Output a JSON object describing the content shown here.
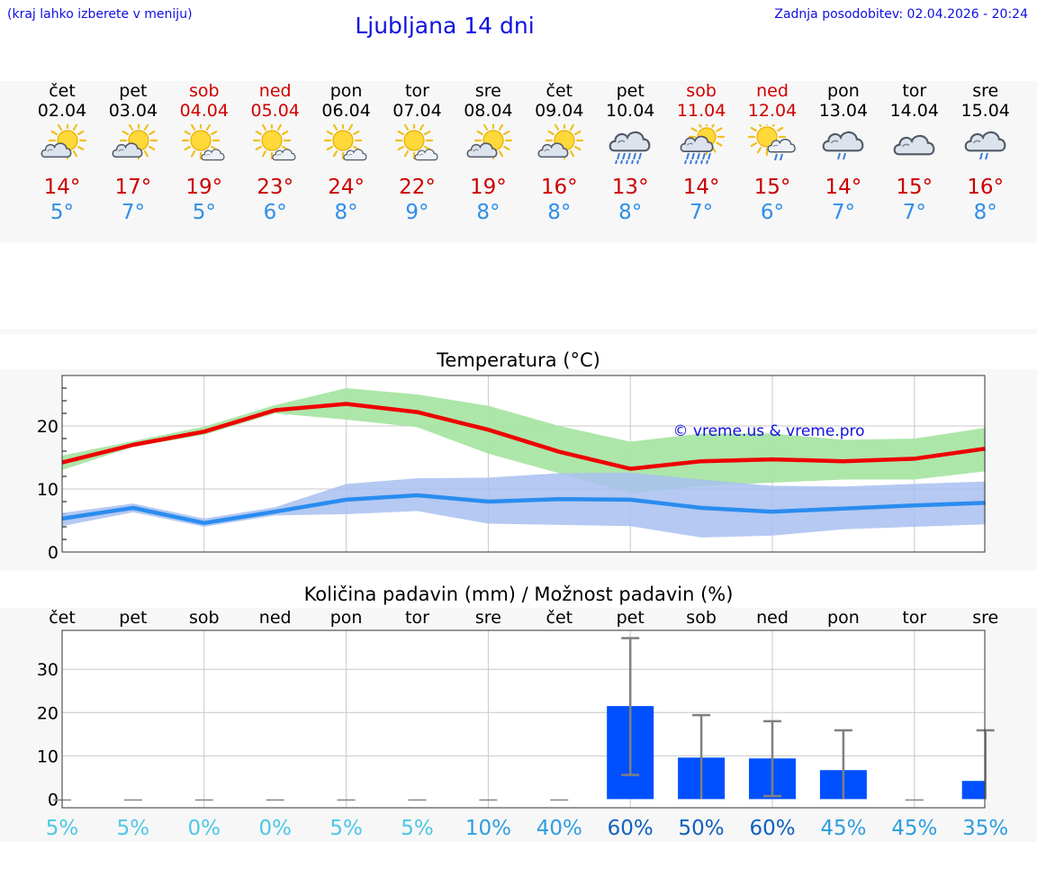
{
  "header": {
    "hint": "(kraj lahko izberete v meniju)",
    "title": "Ljubljana 14 dni",
    "update": "Zadnja posodobitev: 02.04.2026 - 20:24"
  },
  "days": [
    {
      "name": "čet",
      "date": "02.04",
      "weekend": false,
      "icon": "sun-cloud",
      "tmax": "14°",
      "tmin": "5°"
    },
    {
      "name": "pet",
      "date": "03.04",
      "weekend": false,
      "icon": "sun-cloud",
      "tmax": "17°",
      "tmin": "7°"
    },
    {
      "name": "sob",
      "date": "04.04",
      "weekend": true,
      "icon": "sun-small-cloud",
      "tmax": "19°",
      "tmin": "5°"
    },
    {
      "name": "ned",
      "date": "05.04",
      "weekend": true,
      "icon": "sun-small-cloud",
      "tmax": "23°",
      "tmin": "6°"
    },
    {
      "name": "pon",
      "date": "06.04",
      "weekend": false,
      "icon": "sun-small-cloud",
      "tmax": "24°",
      "tmin": "8°"
    },
    {
      "name": "tor",
      "date": "07.04",
      "weekend": false,
      "icon": "sun-small-cloud",
      "tmax": "22°",
      "tmin": "9°"
    },
    {
      "name": "sre",
      "date": "08.04",
      "weekend": false,
      "icon": "sun-cloud",
      "tmax": "19°",
      "tmin": "8°"
    },
    {
      "name": "čet",
      "date": "09.04",
      "weekend": false,
      "icon": "sun-cloud",
      "tmax": "16°",
      "tmin": "8°"
    },
    {
      "name": "pet",
      "date": "10.04",
      "weekend": false,
      "icon": "cloud-rain-heavy",
      "tmax": "13°",
      "tmin": "8°"
    },
    {
      "name": "sob",
      "date": "11.04",
      "weekend": true,
      "icon": "sun-cloud-rain-heavy",
      "tmax": "14°",
      "tmin": "7°"
    },
    {
      "name": "ned",
      "date": "12.04",
      "weekend": true,
      "icon": "sun-cloud-rain",
      "tmax": "15°",
      "tmin": "6°"
    },
    {
      "name": "pon",
      "date": "13.04",
      "weekend": false,
      "icon": "cloud-rain",
      "tmax": "14°",
      "tmin": "7°"
    },
    {
      "name": "tor",
      "date": "14.04",
      "weekend": false,
      "icon": "cloud",
      "tmax": "15°",
      "tmin": "7°"
    },
    {
      "name": "sre",
      "date": "15.04",
      "weekend": false,
      "icon": "cloud-rain",
      "tmax": "16°",
      "tmin": "8°"
    }
  ],
  "colors": {
    "accent_blue": "#1010e0",
    "max_line": "#ee0000",
    "min_line": "#2a8cf0",
    "max_band": "#a9e5a4",
    "min_band": "#a8c0f0",
    "precip_bar": "#0050ff",
    "error_bar": "#808080",
    "weekend": "#d00000"
  },
  "chart_data": [
    {
      "type": "line",
      "title": "Temperatura (°C)",
      "watermark": "© vreme.us & vreme.pro",
      "x": [
        "02.04",
        "03.04",
        "04.04",
        "05.04",
        "06.04",
        "07.04",
        "08.04",
        "09.04",
        "10.04",
        "11.04",
        "12.04",
        "13.04",
        "14.04",
        "15.04"
      ],
      "ylim": [
        0,
        28
      ],
      "yticks": [
        0,
        10,
        20
      ],
      "grid": true,
      "series": [
        {
          "name": "max",
          "values": [
            14.2,
            17.0,
            19.1,
            22.5,
            23.5,
            22.2,
            19.4,
            15.9,
            13.2,
            14.4,
            14.7,
            14.4,
            14.8,
            16.4
          ],
          "band_low": [
            13.0,
            16.7,
            18.6,
            22.0,
            21.0,
            19.8,
            15.6,
            12.5,
            9.3,
            10.5,
            11.0,
            11.5,
            11.5,
            12.8
          ],
          "band_high": [
            15.3,
            17.6,
            19.9,
            23.3,
            26.0,
            25.0,
            23.2,
            20.0,
            17.5,
            18.8,
            18.8,
            17.8,
            18.0,
            19.7
          ]
        },
        {
          "name": "min",
          "values": [
            5.3,
            7.0,
            4.6,
            6.4,
            8.3,
            9.0,
            8.0,
            8.4,
            8.3,
            7.0,
            6.4,
            6.9,
            7.4,
            7.8
          ],
          "band_low": [
            4.1,
            6.3,
            4.0,
            5.8,
            6.0,
            6.5,
            4.5,
            4.3,
            4.1,
            2.3,
            2.6,
            3.6,
            4.0,
            4.4
          ],
          "band_high": [
            6.2,
            7.7,
            5.3,
            7.1,
            10.8,
            11.7,
            11.8,
            12.5,
            12.6,
            11.5,
            10.5,
            10.4,
            10.8,
            11.2
          ]
        }
      ]
    },
    {
      "type": "bar",
      "title": "Količina padavin (mm) / Možnost padavin (%)",
      "categories": [
        "čet",
        "pet",
        "sob",
        "ned",
        "pon",
        "tor",
        "sre",
        "čet",
        "pet",
        "sob",
        "ned",
        "pon",
        "tor",
        "sre"
      ],
      "values": [
        0,
        0,
        0,
        0,
        0,
        0,
        0,
        0,
        21.5,
        9.6,
        9.4,
        6.7,
        0,
        4.2
      ],
      "error_low": [
        0,
        0,
        0,
        0,
        0,
        0,
        0,
        0,
        5.6,
        0,
        0.7,
        0,
        0,
        0
      ],
      "error_high": [
        0,
        0,
        0,
        0,
        0,
        0,
        0,
        0,
        37.2,
        19.4,
        18.0,
        15.9,
        0,
        15.9
      ],
      "ylim": [
        -2,
        39
      ],
      "yticks": [
        0,
        10,
        20,
        30
      ],
      "probability": [
        "5%",
        "5%",
        "0%",
        "0%",
        "5%",
        "5%",
        "10%",
        "40%",
        "60%",
        "50%",
        "60%",
        "45%",
        "45%",
        "35%"
      ],
      "probability_colors": [
        "#4cc8e6",
        "#4cc8e6",
        "#4cc8e6",
        "#4cc8e6",
        "#4cc8e6",
        "#4cc8e6",
        "#2e9ee0",
        "#2e9ee0",
        "#1060c0",
        "#1060c0",
        "#1060c0",
        "#2e9ee0",
        "#2e9ee0",
        "#2e9ee0"
      ]
    }
  ]
}
